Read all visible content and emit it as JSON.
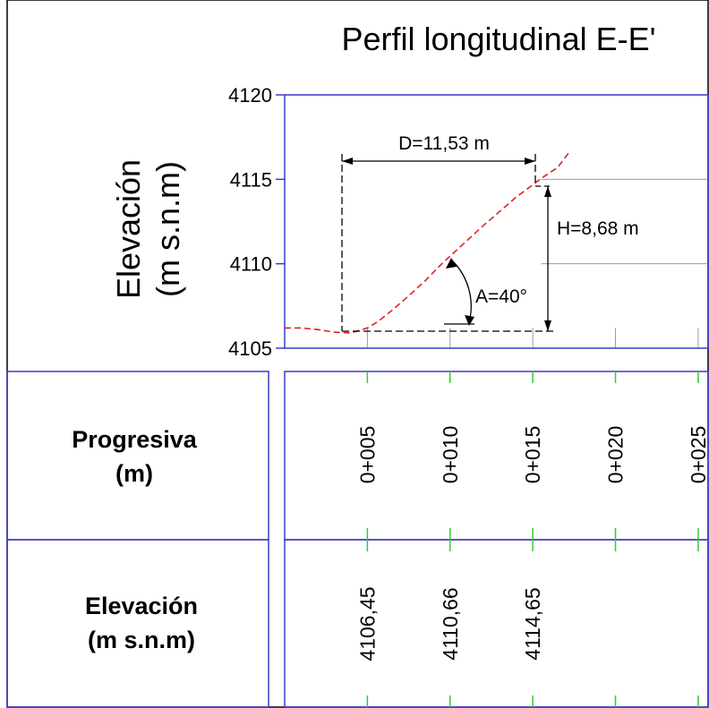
{
  "title": "Perfil longitudinal E-E'",
  "y_axis_label_line1": "Elevación",
  "y_axis_label_line2": "(m s.n.m)",
  "table_row1_label_line1": "Progresiva",
  "table_row1_label_line2": "(m)",
  "table_row2_label_line1": "Elevación",
  "table_row2_label_line2": "(m s.n.m)",
  "annotations": {
    "distance": "D=11,53 m",
    "height": "H=8,68 m",
    "angle": "A=40°"
  },
  "colors": {
    "frame": "#3a3acc",
    "profile": "#e02020",
    "grid": "#9a9a9a",
    "tick": "#33cc33",
    "text": "#000000"
  },
  "chart_data": {
    "type": "line",
    "title": "Perfil longitudinal E-E'",
    "ylabel": "Elevación (m s.n.m)",
    "xlabel": "",
    "ylim": [
      4105,
      4120
    ],
    "xlim": [
      0,
      25.6
    ],
    "y_ticks": [
      4105,
      4110,
      4115,
      4120
    ],
    "x_ticks": [
      5,
      10,
      15,
      20,
      25
    ],
    "grid": true,
    "series": [
      {
        "line_style": "dashed",
        "x": [
          0,
          1,
          2,
          3,
          4,
          5,
          5.6,
          6.5,
          7.5,
          8.5,
          9.5,
          10,
          11,
          12,
          13,
          14,
          14.9,
          15.5,
          16.5,
          17.2
        ],
        "y": [
          4106.2,
          4106.2,
          4106.1,
          4105.95,
          4105.9,
          4106.2,
          4106.55,
          4107.25,
          4108.1,
          4109.0,
          4110.0,
          4110.45,
          4111.35,
          4112.25,
          4113.1,
          4113.95,
          4114.6,
          4115.05,
          4115.7,
          4116.6
        ]
      }
    ],
    "progresiva_labels": [
      "0+005",
      "0+010",
      "0+015",
      "0+020",
      "0+025"
    ],
    "elevacion_values": [
      "4106,45",
      "4110,66",
      "4114,65"
    ],
    "annotations": [
      {
        "label": "D=11,53 m",
        "value": 11.53,
        "unit": "m",
        "from_x": 3.4,
        "to_x": 14.9
      },
      {
        "label": "H=8,68 m",
        "value": 8.68,
        "unit": "m"
      },
      {
        "label": "A=40°",
        "value": 40,
        "unit": "°"
      }
    ]
  }
}
